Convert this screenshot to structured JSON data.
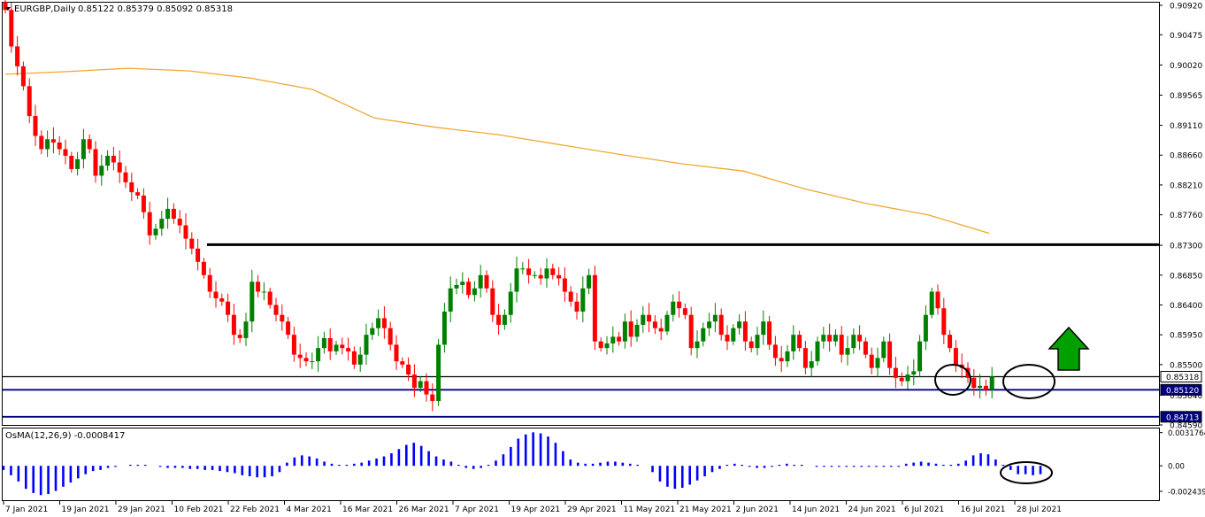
{
  "header": {
    "symbol_label": "EURGBP,Daily",
    "ohlc_text": "0.85122 0.85379 0.85092 0.85318"
  },
  "indicator": {
    "label": "OsMA(12,26,9) -0.0008417"
  },
  "price_axis": {
    "ticks": [
      "0.90920",
      "0.90475",
      "0.90020",
      "0.89565",
      "0.89110",
      "0.88660",
      "0.88210",
      "0.87760",
      "0.87300",
      "0.86850",
      "0.86400",
      "0.85950",
      "0.85500",
      "0.85040",
      "0.84590"
    ],
    "tags": [
      {
        "label": "0.85318",
        "value": 0.85318,
        "bg": "#ffffff",
        "fg": "#000000"
      },
      {
        "label": "0.85120",
        "value": 0.8512,
        "bg": "#000080",
        "fg": "#ffffff"
      },
      {
        "label": "0.84713",
        "value": 0.84713,
        "bg": "#000080",
        "fg": "#ffffff"
      }
    ]
  },
  "osma_axis": {
    "ticks": [
      "0.0031764",
      "0.00",
      "-0.0024391"
    ]
  },
  "time_axis": {
    "labels": [
      "7 Jan 2021",
      "19 Jan 2021",
      "29 Jan 2021",
      "10 Feb 2021",
      "22 Feb 2021",
      "4 Mar 2021",
      "16 Mar 2021",
      "26 Mar 2021",
      "7 Apr 2021",
      "19 Apr 2021",
      "29 Apr 2021",
      "11 May 2021",
      "21 May 2021",
      "2 Jun 2021",
      "14 Jun 2021",
      "24 Jun 2021",
      "6 Jul 2021",
      "16 Jul 2021",
      "28 Jul 2021"
    ]
  },
  "colors": {
    "bull": "#008000",
    "bear": "#ff0000",
    "moving_average": "#f0a830",
    "resistance_line": "#000000",
    "support_line": "#000080",
    "osma_bars": "#0000ff",
    "arrow": "#00a000"
  },
  "chart_data": {
    "type": "candlestick",
    "instrument": "EURGBP",
    "timeframe": "Daily",
    "ylim": [
      0.8459,
      0.9096
    ],
    "close_levels": [
      0.9085,
      0.903,
      0.9,
      0.897,
      0.8925,
      0.8895,
      0.8875,
      0.889,
      0.8885,
      0.8875,
      0.8865,
      0.8845,
      0.886,
      0.889,
      0.8875,
      0.8835,
      0.885,
      0.8865,
      0.8855,
      0.884,
      0.8825,
      0.881,
      0.8805,
      0.878,
      0.8745,
      0.8755,
      0.877,
      0.8785,
      0.877,
      0.876,
      0.874,
      0.8725,
      0.8705,
      0.8685,
      0.866,
      0.865,
      0.8645,
      0.8625,
      0.8595,
      0.859,
      0.8615,
      0.8675,
      0.866,
      0.866,
      0.864,
      0.8625,
      0.8615,
      0.8595,
      0.8565,
      0.856,
      0.8555,
      0.8555,
      0.8575,
      0.859,
      0.857,
      0.858,
      0.8575,
      0.857,
      0.855,
      0.8565,
      0.8595,
      0.8605,
      0.862,
      0.8605,
      0.858,
      0.8555,
      0.855,
      0.8535,
      0.8515,
      0.8525,
      0.8505,
      0.8495,
      0.858,
      0.863,
      0.8665,
      0.867,
      0.8675,
      0.8655,
      0.8665,
      0.8685,
      0.8665,
      0.8625,
      0.861,
      0.8625,
      0.866,
      0.8695,
      0.8695,
      0.8685,
      0.8685,
      0.868,
      0.8695,
      0.8685,
      0.868,
      0.866,
      0.8645,
      0.863,
      0.8665,
      0.8685,
      0.8585,
      0.8575,
      0.8582,
      0.8592,
      0.8585,
      0.8615,
      0.8592,
      0.861,
      0.8625,
      0.8615,
      0.8605,
      0.86,
      0.8625,
      0.8645,
      0.8635,
      0.8625,
      0.8575,
      0.8585,
      0.8605,
      0.8615,
      0.8625,
      0.8595,
      0.8585,
      0.8605,
      0.8615,
      0.8585,
      0.8575,
      0.8595,
      0.8615,
      0.858,
      0.856,
      0.8555,
      0.857,
      0.8595,
      0.8575,
      0.8545,
      0.8555,
      0.8585,
      0.8595,
      0.8585,
      0.8595,
      0.8565,
      0.8575,
      0.8595,
      0.8585,
      0.8565,
      0.8545,
      0.856,
      0.8585,
      0.8545,
      0.853,
      0.8525,
      0.8535,
      0.854,
      0.8585,
      0.8625,
      0.866,
      0.8635,
      0.8595,
      0.8575,
      0.855,
      0.8545,
      0.853,
      0.8515,
      0.8518,
      0.8512,
      0.8532
    ],
    "moving_average_200": [
      {
        "date": "7 Jan 2021",
        "value": 0.8988
      },
      {
        "date": "29 Jan 2021",
        "value": 0.8992
      },
      {
        "date": "10 Feb 2021",
        "value": 0.8997
      },
      {
        "date": "22 Feb 2021",
        "value": 0.8993
      },
      {
        "date": "4 Mar 2021",
        "value": 0.8982
      },
      {
        "date": "16 Mar 2021",
        "value": 0.8965
      },
      {
        "date": "7 Apr 2021",
        "value": 0.8922
      },
      {
        "date": "19 Apr 2021",
        "value": 0.8908
      },
      {
        "date": "29 Apr 2021",
        "value": 0.8897
      },
      {
        "date": "11 May 2021",
        "value": 0.8882
      },
      {
        "date": "21 May 2021",
        "value": 0.8867
      },
      {
        "date": "2 Jun 2021",
        "value": 0.8853
      },
      {
        "date": "14 Jun 2021",
        "value": 0.8842
      },
      {
        "date": "24 Jun 2021",
        "value": 0.8815
      },
      {
        "date": "6 Jul 2021",
        "value": 0.8793
      },
      {
        "date": "16 Jul 2021",
        "value": 0.8776
      },
      {
        "date": "28 Jul 2021",
        "value": 0.8748
      }
    ],
    "horizontal_levels": [
      {
        "value": 0.8731,
        "color": "#000000"
      },
      {
        "value": 0.85318,
        "color": "#000000"
      },
      {
        "value": 0.8512,
        "color": "#000080"
      },
      {
        "value": 0.84713,
        "color": "#000080"
      }
    ],
    "osma": {
      "ylim": [
        -0.0032,
        0.0034
      ],
      "values": [
        -0.0004,
        -0.0009,
        -0.0015,
        -0.0022,
        -0.0026,
        -0.0028,
        -0.0027,
        -0.0024,
        -0.002,
        -0.0016,
        -0.0012,
        -0.0008,
        -0.0005,
        -0.0004,
        -0.0002,
        -0.0001,
        0.0,
        0.0001,
        0.0001,
        0.0001,
        0.0,
        -0.0001,
        -0.0002,
        -0.0002,
        -0.0002,
        -0.0003,
        -0.0003,
        -0.0004,
        -0.0004,
        -0.0005,
        -0.0006,
        -0.0007,
        -0.0009,
        -0.001,
        -0.0011,
        -0.0011,
        -0.001,
        -0.0006,
        0.0003,
        0.0008,
        0.001,
        0.0009,
        0.0007,
        0.0004,
        0.0002,
        0.0001,
        0.0001,
        0.0002,
        0.0003,
        0.0005,
        0.0007,
        0.0009,
        0.0012,
        0.0016,
        0.002,
        0.0022,
        0.0019,
        0.0014,
        0.0009,
        0.0006,
        0.0004,
        0.0001,
        -0.0002,
        -0.0003,
        -0.0002,
        0.0001,
        0.0005,
        0.0011,
        0.0018,
        0.0026,
        0.003,
        0.0032,
        0.0031,
        0.0028,
        0.0022,
        0.0014,
        0.0006,
        0.0003,
        0.0002,
        0.0002,
        0.0003,
        0.0004,
        0.0004,
        0.0003,
        0.0002,
        0.0001,
        0.0,
        -0.0006,
        -0.0015,
        -0.002,
        -0.0022,
        -0.0021,
        -0.0018,
        -0.0014,
        -0.001,
        -0.0006,
        -0.0003,
        0.0001,
        0.0002,
        0.0001,
        -0.0001,
        -0.0002,
        -0.0002,
        -0.0001,
        0.0001,
        0.0002,
        0.0001,
        0.0001,
        0.0,
        -0.0001,
        -0.0001,
        -0.0001,
        -0.0001,
        -0.0001,
        -0.0001,
        -0.0001,
        -0.0001,
        -0.0001,
        -0.0001,
        -0.0001,
        -0.0001,
        0.0002,
        0.0003,
        0.0004,
        0.0003,
        0.0002,
        0.0001,
        0.0001,
        0.0002,
        0.0005,
        0.001,
        0.0012,
        0.0011,
        0.0006,
        0.0001,
        -0.0004,
        -0.0008,
        -0.0008,
        -0.0009,
        -0.0008
      ]
    }
  }
}
